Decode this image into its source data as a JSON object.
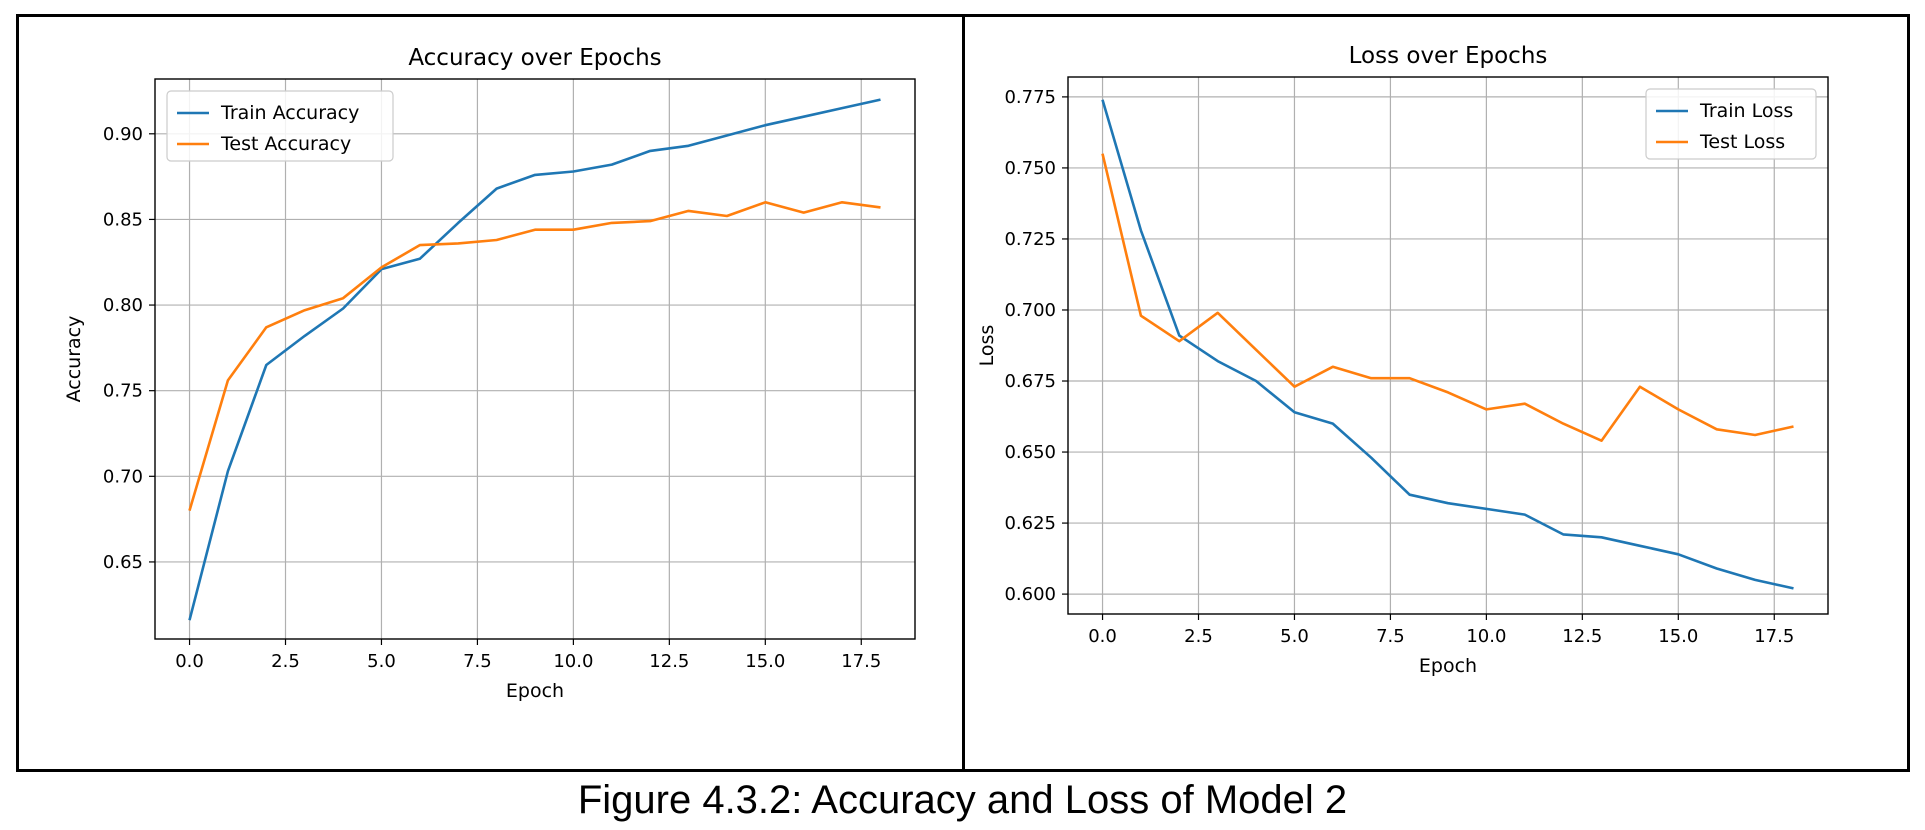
{
  "caption": "Figure 4.3.2: Accuracy and Loss of Model 2",
  "colors": {
    "train": "#1f77b4",
    "test": "#ff7f0e",
    "grid": "#b0b0b0"
  },
  "chart_data": [
    {
      "type": "line",
      "title": "Accuracy over Epochs",
      "xlabel": "Epoch",
      "ylabel": "Accuracy",
      "grid": true,
      "legend_position": "upper-left",
      "xlim": [
        -0.9,
        18.9
      ],
      "ylim": [
        0.605,
        0.932
      ],
      "xticks": [
        0.0,
        2.5,
        5.0,
        7.5,
        10.0,
        12.5,
        15.0,
        17.5
      ],
      "xtick_labels": [
        "0.0",
        "2.5",
        "5.0",
        "7.5",
        "10.0",
        "12.5",
        "15.0",
        "17.5"
      ],
      "yticks": [
        0.65,
        0.7,
        0.75,
        0.8,
        0.85,
        0.9
      ],
      "ytick_labels": [
        "0.65",
        "0.70",
        "0.75",
        "0.80",
        "0.85",
        "0.90"
      ],
      "x": [
        0,
        1,
        2,
        3,
        4,
        5,
        6,
        7,
        8,
        9,
        10,
        11,
        12,
        13,
        14,
        15,
        16,
        17,
        18
      ],
      "series": [
        {
          "name": "Train Accuracy",
          "color": "#1f77b4",
          "values": [
            0.616,
            0.703,
            0.765,
            0.782,
            0.798,
            0.821,
            0.827,
            0.848,
            0.868,
            0.876,
            0.878,
            0.882,
            0.89,
            0.893,
            0.899,
            0.905,
            0.91,
            0.915,
            0.92
          ]
        },
        {
          "name": "Test Accuracy",
          "color": "#ff7f0e",
          "values": [
            0.68,
            0.756,
            0.787,
            0.797,
            0.804,
            0.822,
            0.835,
            0.836,
            0.838,
            0.844,
            0.844,
            0.848,
            0.849,
            0.855,
            0.852,
            0.86,
            0.854,
            0.86,
            0.857
          ]
        }
      ]
    },
    {
      "type": "line",
      "title": "Loss over Epochs",
      "xlabel": "Epoch",
      "ylabel": "Loss",
      "grid": true,
      "legend_position": "upper-right",
      "xlim": [
        -0.9,
        18.9
      ],
      "ylim": [
        0.593,
        0.782
      ],
      "xticks": [
        0.0,
        2.5,
        5.0,
        7.5,
        10.0,
        12.5,
        15.0,
        17.5
      ],
      "xtick_labels": [
        "0.0",
        "2.5",
        "5.0",
        "7.5",
        "10.0",
        "12.5",
        "15.0",
        "17.5"
      ],
      "yticks": [
        0.6,
        0.625,
        0.65,
        0.675,
        0.7,
        0.725,
        0.75,
        0.775
      ],
      "ytick_labels": [
        "0.600",
        "0.625",
        "0.650",
        "0.675",
        "0.700",
        "0.725",
        "0.750",
        "0.775"
      ],
      "x": [
        0,
        1,
        2,
        3,
        4,
        5,
        6,
        7,
        8,
        9,
        10,
        11,
        12,
        13,
        14,
        15,
        16,
        17,
        18
      ],
      "series": [
        {
          "name": "Train Loss",
          "color": "#1f77b4",
          "values": [
            0.774,
            0.728,
            0.691,
            0.682,
            0.675,
            0.664,
            0.66,
            0.648,
            0.635,
            0.632,
            0.63,
            0.628,
            0.621,
            0.62,
            0.617,
            0.614,
            0.609,
            0.605,
            0.602
          ]
        },
        {
          "name": "Test Loss",
          "color": "#ff7f0e",
          "values": [
            0.755,
            0.698,
            0.689,
            0.699,
            0.686,
            0.673,
            0.68,
            0.676,
            0.676,
            0.671,
            0.665,
            0.667,
            0.66,
            0.654,
            0.673,
            0.665,
            0.658,
            0.656,
            0.659
          ]
        }
      ]
    }
  ]
}
